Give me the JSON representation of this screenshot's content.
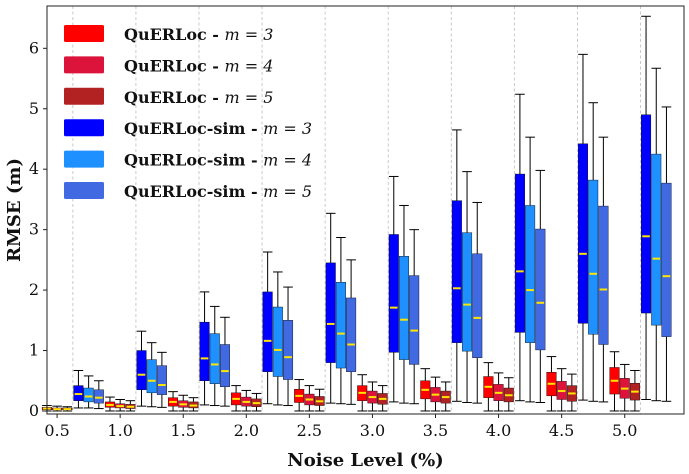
{
  "chart_data": {
    "type": "box",
    "xlabel": "Noise Level (%)",
    "ylabel": "RMSE (m)",
    "ylim": [
      -0.05,
      6.7
    ],
    "grid": "vertical dashed",
    "legend_position": "top-left",
    "x_ticks": [
      "0.5",
      "1.0",
      "1.5",
      "2.0",
      "2.5",
      "3.0",
      "3.5",
      "4.0",
      "4.5",
      "5.0"
    ],
    "y_ticks": [
      0,
      1,
      2,
      3,
      4,
      5,
      6
    ],
    "legend": [
      {
        "name": "QuERLoc",
        "suffix": " - ",
        "m": "m = 3",
        "color": "#ff0000"
      },
      {
        "name": "QuERLoc",
        "suffix": " - ",
        "m": "m = 4",
        "color": "#dc143c"
      },
      {
        "name": "QuERLoc",
        "suffix": " - ",
        "m": "m = 5",
        "color": "#b22222"
      },
      {
        "name": "QuERLoc-sim",
        "suffix": " - ",
        "m": "m = 3",
        "color": "#0000ff"
      },
      {
        "name": "QuERLoc-sim",
        "suffix": " - ",
        "m": "m = 4",
        "color": "#1e90ff"
      },
      {
        "name": "QuERLoc-sim",
        "suffix": " - ",
        "m": "m = 5",
        "color": "#4169e1"
      }
    ],
    "groups": [
      {
        "position": 0.5,
        "series": "QuERLoc",
        "boxes": [
          {
            "m": 3,
            "min": 0.0,
            "q1": 0.02,
            "median": 0.04,
            "q3": 0.06,
            "max": 0.09
          },
          {
            "m": 4,
            "min": 0.0,
            "q1": 0.02,
            "median": 0.03,
            "q3": 0.05,
            "max": 0.08
          },
          {
            "m": 5,
            "min": 0.0,
            "q1": 0.02,
            "median": 0.03,
            "q3": 0.05,
            "max": 0.07
          }
        ]
      },
      {
        "position": 0.75,
        "series": "QuERLoc-sim",
        "boxes": [
          {
            "m": 3,
            "min": 0.05,
            "q1": 0.17,
            "median": 0.28,
            "q3": 0.42,
            "max": 0.67
          },
          {
            "m": 4,
            "min": 0.05,
            "q1": 0.15,
            "median": 0.24,
            "q3": 0.38,
            "max": 0.58
          },
          {
            "m": 5,
            "min": 0.04,
            "q1": 0.13,
            "median": 0.22,
            "q3": 0.35,
            "max": 0.5
          }
        ]
      },
      {
        "position": 1.0,
        "series": "QuERLoc",
        "boxes": [
          {
            "m": 3,
            "min": 0.0,
            "q1": 0.06,
            "median": 0.1,
            "q3": 0.15,
            "max": 0.23
          },
          {
            "m": 4,
            "min": 0.0,
            "q1": 0.05,
            "median": 0.08,
            "q3": 0.12,
            "max": 0.19
          },
          {
            "m": 5,
            "min": 0.0,
            "q1": 0.04,
            "median": 0.07,
            "q3": 0.11,
            "max": 0.17
          }
        ]
      },
      {
        "position": 1.25,
        "series": "QuERLoc-sim",
        "boxes": [
          {
            "m": 3,
            "min": 0.08,
            "q1": 0.35,
            "median": 0.6,
            "q3": 1.0,
            "max": 1.32
          },
          {
            "m": 4,
            "min": 0.07,
            "q1": 0.3,
            "median": 0.5,
            "q3": 0.85,
            "max": 1.13
          },
          {
            "m": 5,
            "min": 0.06,
            "q1": 0.27,
            "median": 0.43,
            "q3": 0.75,
            "max": 0.97
          }
        ]
      },
      {
        "position": 1.5,
        "series": "QuERLoc",
        "boxes": [
          {
            "m": 3,
            "min": 0.0,
            "q1": 0.08,
            "median": 0.15,
            "q3": 0.22,
            "max": 0.32
          },
          {
            "m": 4,
            "min": 0.0,
            "q1": 0.06,
            "median": 0.11,
            "q3": 0.17,
            "max": 0.26
          },
          {
            "m": 5,
            "min": 0.0,
            "q1": 0.05,
            "median": 0.09,
            "q3": 0.15,
            "max": 0.22
          }
        ]
      },
      {
        "position": 1.75,
        "series": "QuERLoc-sim",
        "boxes": [
          {
            "m": 3,
            "min": 0.1,
            "q1": 0.5,
            "median": 0.87,
            "q3": 1.47,
            "max": 1.97
          },
          {
            "m": 4,
            "min": 0.09,
            "q1": 0.45,
            "median": 0.77,
            "q3": 1.28,
            "max": 1.73
          },
          {
            "m": 5,
            "min": 0.08,
            "q1": 0.4,
            "median": 0.66,
            "q3": 1.1,
            "max": 1.55
          }
        ]
      },
      {
        "position": 2.0,
        "series": "QuERLoc",
        "boxes": [
          {
            "m": 3,
            "min": 0.0,
            "q1": 0.1,
            "median": 0.2,
            "q3": 0.3,
            "max": 0.42
          },
          {
            "m": 4,
            "min": 0.0,
            "q1": 0.08,
            "median": 0.15,
            "q3": 0.23,
            "max": 0.34
          },
          {
            "m": 5,
            "min": 0.0,
            "q1": 0.07,
            "median": 0.13,
            "q3": 0.2,
            "max": 0.29
          }
        ]
      },
      {
        "position": 2.25,
        "series": "QuERLoc-sim",
        "boxes": [
          {
            "m": 3,
            "min": 0.12,
            "q1": 0.65,
            "median": 1.16,
            "q3": 1.97,
            "max": 2.63
          },
          {
            "m": 4,
            "min": 0.1,
            "q1": 0.57,
            "median": 1.01,
            "q3": 1.72,
            "max": 2.3
          },
          {
            "m": 5,
            "min": 0.09,
            "q1": 0.52,
            "median": 0.89,
            "q3": 1.5,
            "max": 2.05
          }
        ]
      },
      {
        "position": 2.5,
        "series": "QuERLoc",
        "boxes": [
          {
            "m": 3,
            "min": 0.0,
            "q1": 0.14,
            "median": 0.25,
            "q3": 0.36,
            "max": 0.52
          },
          {
            "m": 4,
            "min": 0.0,
            "q1": 0.1,
            "median": 0.19,
            "q3": 0.28,
            "max": 0.42
          },
          {
            "m": 5,
            "min": 0.0,
            "q1": 0.09,
            "median": 0.16,
            "q3": 0.24,
            "max": 0.36
          }
        ]
      },
      {
        "position": 2.75,
        "series": "QuERLoc-sim",
        "boxes": [
          {
            "m": 3,
            "min": 0.13,
            "q1": 0.8,
            "median": 1.44,
            "q3": 2.45,
            "max": 3.27
          },
          {
            "m": 4,
            "min": 0.12,
            "q1": 0.71,
            "median": 1.28,
            "q3": 2.13,
            "max": 2.87
          },
          {
            "m": 5,
            "min": 0.11,
            "q1": 0.65,
            "median": 1.1,
            "q3": 1.87,
            "max": 2.5
          }
        ]
      },
      {
        "position": 3.0,
        "series": "QuERLoc",
        "boxes": [
          {
            "m": 3,
            "min": 0.0,
            "q1": 0.17,
            "median": 0.3,
            "q3": 0.42,
            "max": 0.6
          },
          {
            "m": 4,
            "min": 0.0,
            "q1": 0.13,
            "median": 0.23,
            "q3": 0.33,
            "max": 0.48
          },
          {
            "m": 5,
            "min": 0.0,
            "q1": 0.11,
            "median": 0.2,
            "q3": 0.29,
            "max": 0.42
          }
        ]
      },
      {
        "position": 3.25,
        "series": "QuERLoc-sim",
        "boxes": [
          {
            "m": 3,
            "min": 0.15,
            "q1": 0.97,
            "median": 1.71,
            "q3": 2.92,
            "max": 3.88
          },
          {
            "m": 4,
            "min": 0.13,
            "q1": 0.85,
            "median": 1.51,
            "q3": 2.56,
            "max": 3.4
          },
          {
            "m": 5,
            "min": 0.12,
            "q1": 0.77,
            "median": 1.33,
            "q3": 2.24,
            "max": 3.0
          }
        ]
      },
      {
        "position": 3.5,
        "series": "QuERLoc",
        "boxes": [
          {
            "m": 3,
            "min": 0.0,
            "q1": 0.2,
            "median": 0.35,
            "q3": 0.5,
            "max": 0.7
          },
          {
            "m": 4,
            "min": 0.0,
            "q1": 0.15,
            "median": 0.27,
            "q3": 0.39,
            "max": 0.56
          },
          {
            "m": 5,
            "min": 0.0,
            "q1": 0.13,
            "median": 0.23,
            "q3": 0.33,
            "max": 0.48
          }
        ]
      },
      {
        "position": 3.75,
        "series": "QuERLoc-sim",
        "boxes": [
          {
            "m": 3,
            "min": 0.16,
            "q1": 1.13,
            "median": 2.03,
            "q3": 3.48,
            "max": 4.65
          },
          {
            "m": 4,
            "min": 0.14,
            "q1": 0.99,
            "median": 1.76,
            "q3": 2.95,
            "max": 3.96
          },
          {
            "m": 5,
            "min": 0.13,
            "q1": 0.88,
            "median": 1.54,
            "q3": 2.6,
            "max": 3.45
          }
        ]
      },
      {
        "position": 4.0,
        "series": "QuERLoc",
        "boxes": [
          {
            "m": 3,
            "min": 0.0,
            "q1": 0.22,
            "median": 0.4,
            "q3": 0.57,
            "max": 0.8
          },
          {
            "m": 4,
            "min": 0.0,
            "q1": 0.17,
            "median": 0.3,
            "q3": 0.44,
            "max": 0.63
          },
          {
            "m": 5,
            "min": 0.0,
            "q1": 0.15,
            "median": 0.26,
            "q3": 0.38,
            "max": 0.55
          }
        ]
      },
      {
        "position": 4.25,
        "series": "QuERLoc-sim",
        "boxes": [
          {
            "m": 3,
            "min": 0.17,
            "q1": 1.3,
            "median": 2.31,
            "q3": 3.92,
            "max": 5.24
          },
          {
            "m": 4,
            "min": 0.15,
            "q1": 1.13,
            "median": 2.0,
            "q3": 3.4,
            "max": 4.53
          },
          {
            "m": 5,
            "min": 0.14,
            "q1": 1.01,
            "median": 1.79,
            "q3": 3.01,
            "max": 3.98
          }
        ]
      },
      {
        "position": 4.5,
        "series": "QuERLoc",
        "boxes": [
          {
            "m": 3,
            "min": 0.0,
            "q1": 0.25,
            "median": 0.45,
            "q3": 0.64,
            "max": 0.9
          },
          {
            "m": 4,
            "min": 0.0,
            "q1": 0.19,
            "median": 0.33,
            "q3": 0.49,
            "max": 0.7
          },
          {
            "m": 5,
            "min": 0.0,
            "q1": 0.16,
            "median": 0.29,
            "q3": 0.42,
            "max": 0.61
          }
        ]
      },
      {
        "position": 4.75,
        "series": "QuERLoc-sim",
        "boxes": [
          {
            "m": 3,
            "min": 0.18,
            "q1": 1.45,
            "median": 2.6,
            "q3": 4.42,
            "max": 5.9
          },
          {
            "m": 4,
            "min": 0.16,
            "q1": 1.27,
            "median": 2.27,
            "q3": 3.82,
            "max": 5.1
          },
          {
            "m": 5,
            "min": 0.15,
            "q1": 1.1,
            "median": 2.01,
            "q3": 3.39,
            "max": 4.53
          }
        ]
      },
      {
        "position": 5.0,
        "series": "QuERLoc",
        "boxes": [
          {
            "m": 3,
            "min": 0.0,
            "q1": 0.28,
            "median": 0.5,
            "q3": 0.72,
            "max": 0.98
          },
          {
            "m": 4,
            "min": 0.0,
            "q1": 0.21,
            "median": 0.37,
            "q3": 0.54,
            "max": 0.77
          },
          {
            "m": 5,
            "min": 0.0,
            "q1": 0.18,
            "median": 0.32,
            "q3": 0.46,
            "max": 0.67
          }
        ]
      },
      {
        "position": 5.25,
        "series": "QuERLoc-sim",
        "boxes": [
          {
            "m": 3,
            "min": 0.19,
            "q1": 1.62,
            "median": 2.89,
            "q3": 4.9,
            "max": 6.53
          },
          {
            "m": 4,
            "min": 0.17,
            "q1": 1.42,
            "median": 2.52,
            "q3": 4.25,
            "max": 5.67
          },
          {
            "m": 5,
            "min": 0.16,
            "q1": 1.23,
            "median": 2.23,
            "q3": 3.77,
            "max": 5.03
          }
        ]
      }
    ],
    "styles": {
      "QuERLoc": [
        "#ff0000",
        "#dc143c",
        "#b22222"
      ],
      "QuERLoc-sim": [
        "#0000ff",
        "#1e90ff",
        "#4169e1"
      ],
      "median_color": "#ffe600",
      "whisker_color": "#000000",
      "grid_color": "#bdbdbd"
    }
  }
}
